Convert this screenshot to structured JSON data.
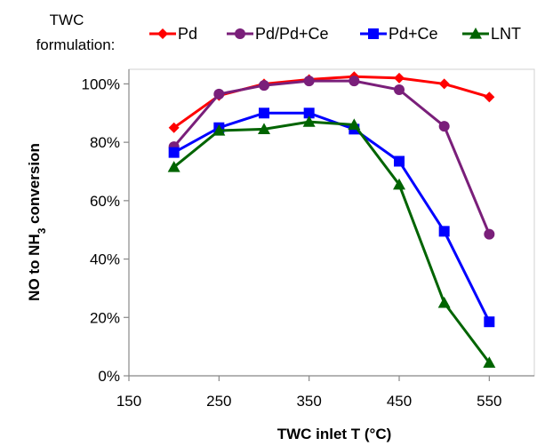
{
  "chart_data": {
    "type": "line",
    "title": "",
    "xlabel": "TWC inlet T (°C)",
    "ylabel_parts": {
      "before": "NO to NH",
      "sub": "3",
      "after": " conversion"
    },
    "legend_title_lines": [
      "TWC",
      "formulation:"
    ],
    "legend_position": "top",
    "x_ticks": [
      150,
      250,
      350,
      450,
      550
    ],
    "y_ticks": [
      0,
      20,
      40,
      60,
      80,
      100
    ],
    "y_tick_labels": [
      "0%",
      "20%",
      "40%",
      "60%",
      "80%",
      "100%"
    ],
    "xlim": [
      150,
      600
    ],
    "ylim": [
      0,
      105
    ],
    "grid": false,
    "x": [
      200,
      250,
      300,
      350,
      400,
      450,
      500,
      550
    ],
    "series": [
      {
        "name": "Pd",
        "color": "#ff0000",
        "marker": "diamond",
        "values": [
          85,
          96,
          100,
          101.5,
          102.5,
          102,
          100,
          95.5
        ]
      },
      {
        "name": "Pd/Pd+Ce",
        "color": "#7a1f7a",
        "marker": "circle",
        "values": [
          78.5,
          96.5,
          99.5,
          101,
          101,
          98,
          85.5,
          48.5
        ]
      },
      {
        "name": "Pd+Ce",
        "color": "#0000ff",
        "marker": "square",
        "values": [
          76.5,
          85,
          90,
          90,
          84.5,
          73.5,
          49.5,
          18.5
        ]
      },
      {
        "name": "LNT",
        "color": "#006400",
        "marker": "triangle",
        "values": [
          71.5,
          84,
          84.5,
          87,
          86,
          65.5,
          25,
          4.5
        ]
      }
    ]
  }
}
